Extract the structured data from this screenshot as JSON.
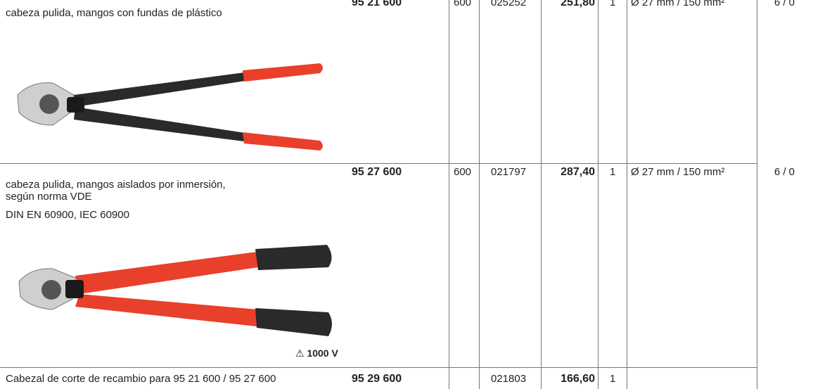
{
  "rows": [
    {
      "description": [
        "cabeza pulida, mangos con fundas de plástico"
      ],
      "article": "95 21 600",
      "length": "600",
      "ean": "025252",
      "price": "251,80",
      "qty": "1",
      "capacity": "Ø 27 mm / 150 mm²",
      "pack": "6 / 0"
    },
    {
      "description": [
        "cabeza pulida, mangos aislados por inmersión,",
        "según norma VDE",
        "DIN EN 60900, IEC 60900"
      ],
      "article": "95 27 600",
      "length": "600",
      "ean": "021797",
      "price": "287,40",
      "qty": "1",
      "capacity": "Ø 27 mm / 150 mm²",
      "pack": "6 / 0",
      "voltage": "1000 V"
    },
    {
      "description": [
        "Cabezal de corte de recambio para 95 21 600 / 95 27 600"
      ],
      "article": "95 29 600",
      "ean": "021803",
      "price": "166,60",
      "qty": "1"
    }
  ]
}
